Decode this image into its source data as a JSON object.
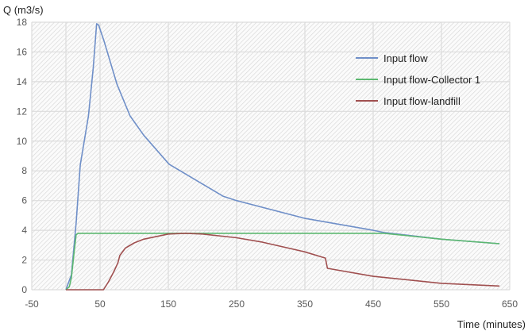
{
  "chart_data": {
    "type": "line",
    "title": "",
    "xlabel": "Time (minutes)",
    "ylabel": "Q (m3/s)",
    "xlim": [
      -50,
      650
    ],
    "ylim": [
      0,
      18
    ],
    "xticks": [
      "-50",
      "50",
      "150",
      "250",
      "350",
      "450",
      "550",
      "650"
    ],
    "yticks": [
      "0",
      "2",
      "4",
      "6",
      "8",
      "10",
      "12",
      "14",
      "16",
      "18"
    ],
    "grid": true,
    "legend_position": "top-right",
    "series": [
      {
        "name": "Input flow",
        "color": "#6f8fc8",
        "x": [
          0,
          8,
          15,
          21,
          33,
          40,
          45,
          48,
          56,
          75,
          94,
          114,
          151,
          230,
          250,
          350,
          450,
          466,
          550,
          635
        ],
        "y": [
          0,
          1.0,
          4.5,
          8.4,
          11.7,
          14.9,
          17.9,
          17.8,
          16.7,
          13.8,
          11.7,
          10.4,
          8.45,
          6.3,
          6.0,
          4.8,
          4.0,
          3.85,
          3.4,
          3.1
        ]
      },
      {
        "name": "Input flow-Collector 1",
        "color": "#5cb870",
        "x": [
          0,
          5,
          8,
          12,
          15,
          18,
          100,
          300,
          466,
          550,
          635
        ],
        "y": [
          0,
          0.2,
          0.8,
          2.5,
          3.7,
          3.8,
          3.8,
          3.8,
          3.8,
          3.4,
          3.1
        ]
      },
      {
        "name": "Input flow-landfill",
        "color": "#a05050",
        "x": [
          0,
          55,
          62,
          70,
          76,
          79,
          87,
          100,
          114,
          150,
          175,
          200,
          250,
          288,
          350,
          380,
          383,
          450,
          550,
          635
        ],
        "y": [
          0,
          0,
          0.5,
          1.2,
          1.8,
          2.3,
          2.8,
          3.15,
          3.4,
          3.75,
          3.8,
          3.75,
          3.5,
          3.2,
          2.55,
          2.13,
          1.44,
          0.9,
          0.43,
          0.25
        ]
      }
    ]
  }
}
